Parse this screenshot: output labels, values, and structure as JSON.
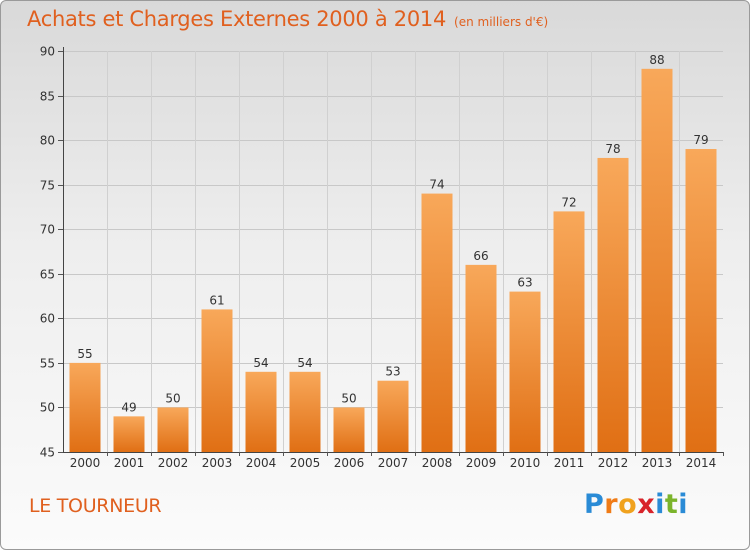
{
  "header": {
    "title": "Achats et Charges Externes 2000 à 2014",
    "unit": "(en milliers d'€)"
  },
  "footer": {
    "location": "LE TOURNEUR",
    "brand": "Proxiti",
    "brand_letters": [
      "P",
      "r",
      "o",
      "x",
      "i",
      "t",
      "i"
    ],
    "brand_colors": [
      "#2a8bd6",
      "#f07b16",
      "#f0a21e",
      "#d8232a",
      "#2a8bd6",
      "#7bb42b",
      "#2a8bd6"
    ]
  },
  "colors": {
    "accent": "#e0601f",
    "bar_light": "#f8a85a",
    "bar_dark": "#e06f14"
  },
  "chart_data": {
    "type": "bar",
    "title": "Achats et Charges Externes 2000 à 2014",
    "subtitle": "(en milliers d'€)",
    "categories": [
      "2000",
      "2001",
      "2002",
      "2003",
      "2004",
      "2005",
      "2006",
      "2007",
      "2008",
      "2009",
      "2010",
      "2011",
      "2012",
      "2013",
      "2014"
    ],
    "values": [
      55,
      49,
      50,
      61,
      54,
      54,
      50,
      53,
      74,
      66,
      63,
      72,
      78,
      88,
      79
    ],
    "ylim": [
      45,
      90
    ],
    "yticks": [
      45,
      50,
      55,
      60,
      65,
      70,
      75,
      80,
      85,
      90
    ],
    "grid": true,
    "data_labels": true
  }
}
